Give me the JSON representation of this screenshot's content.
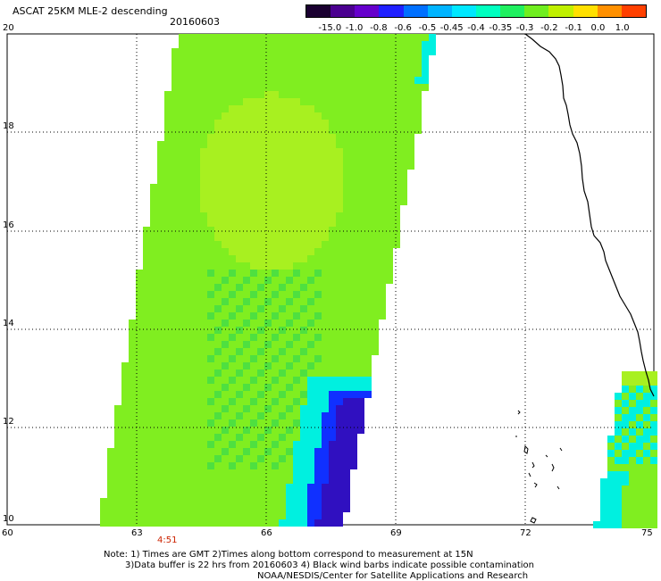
{
  "header": {
    "title": "ASCAT 25KM MLE-2 descending",
    "date": "20160603"
  },
  "colorbar": {
    "labels": [
      "-15.0",
      "-1.0",
      "-0.8",
      "-0.6",
      "-0.5",
      "-0.45",
      "-0.4",
      "-0.35",
      "-0.3",
      "-0.2",
      "-0.1",
      "0.0",
      "1.0"
    ],
    "colors": [
      "#1a0030",
      "#4b0090",
      "#6600cc",
      "#2020ff",
      "#0070ff",
      "#00b4ff",
      "#00e8ff",
      "#00ffc0",
      "#20f060",
      "#70ee20",
      "#c0f000",
      "#ffe000",
      "#ff9000",
      "#ff4000"
    ]
  },
  "axes": {
    "x_labels": [
      "60",
      "63",
      "66",
      "69",
      "72",
      "75"
    ],
    "y_labels": [
      "20",
      "18",
      "16",
      "14",
      "12",
      "10"
    ]
  },
  "time_label": "4:51",
  "notes": {
    "line1": "Note: 1) Times are GMT 2)Times along bottom correspond to measurement at 15N",
    "line2": "3)Data buffer is 22 hrs from 20160603 4) Black wind barbs indicate possible contamination",
    "line3": "NOAA/NESDIS/Center for Satellite Applications and Research"
  },
  "colors": {
    "swath_main": "#80ee20",
    "swath_light": "#a8f020",
    "swath_mid": "#4ee040",
    "swath_cyan": "#00f0e0",
    "swath_blue": "#1030ff",
    "swath_navy": "#3010c0",
    "coastline": "#000000"
  }
}
